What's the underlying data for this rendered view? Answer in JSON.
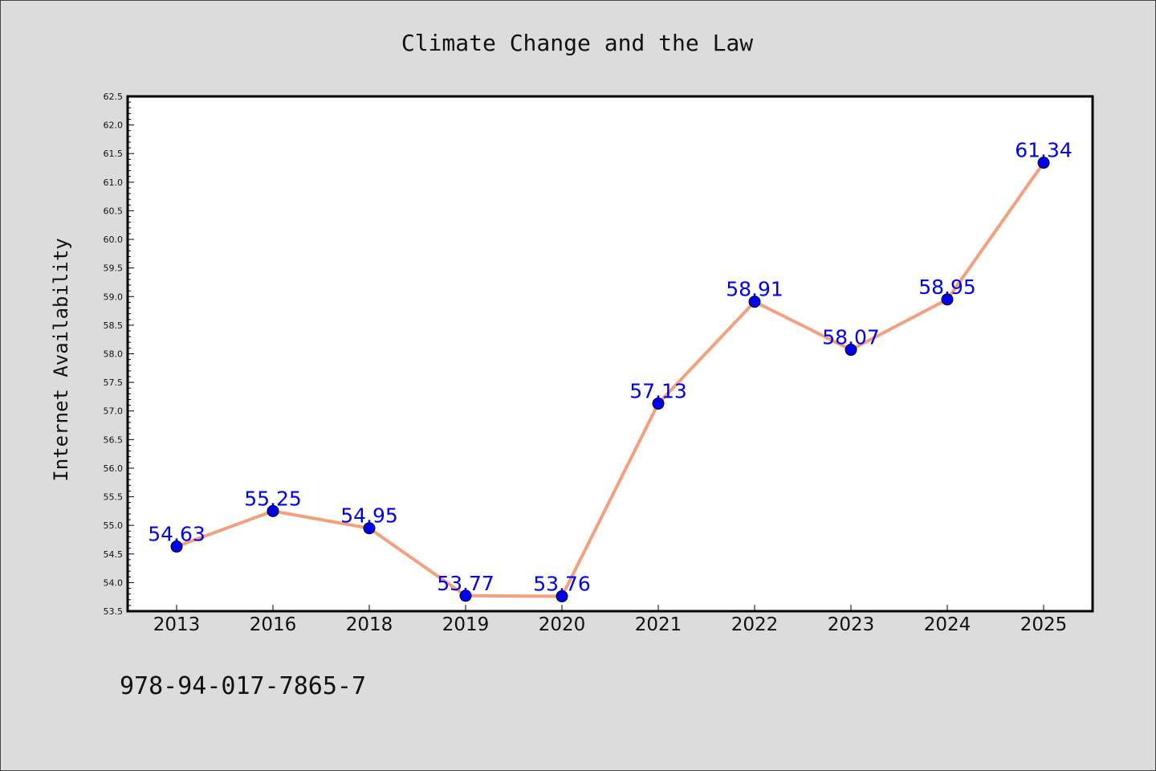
{
  "chart_data": {
    "type": "line",
    "title": "Climate Change and the Law",
    "xlabel": "",
    "ylabel": "Internet Availability",
    "categories": [
      "2013",
      "2016",
      "2018",
      "2019",
      "2020",
      "2021",
      "2022",
      "2023",
      "2024",
      "2025"
    ],
    "series": [
      {
        "values": [
          54.63,
          55.25,
          54.95,
          53.77,
          53.76,
          57.13,
          58.91,
          58.07,
          58.95,
          61.34
        ],
        "labels": [
          "54.63",
          "55.25",
          "54.95",
          "53.77",
          "53.76",
          "57.13",
          "58.91",
          "58.07",
          "58.95",
          "61.34"
        ]
      }
    ],
    "ylim": [
      53.5,
      62.5
    ],
    "yticks": [
      "53.5",
      "54.0",
      "54.5",
      "55.0",
      "55.5",
      "56.0",
      "56.5",
      "57.0",
      "57.5",
      "58.0",
      "58.5",
      "59.0",
      "59.5",
      "60.0",
      "60.5",
      "61.0",
      "61.5",
      "62.0",
      "62.5"
    ],
    "grid": false,
    "colors": {
      "line": "#f4a07e",
      "marker": "#0000ee",
      "label": "#0000ee",
      "background": "#dcdcdc",
      "plot_background": "#ffffff"
    }
  },
  "footer": {
    "isbn": "978-94-017-7865-7"
  }
}
